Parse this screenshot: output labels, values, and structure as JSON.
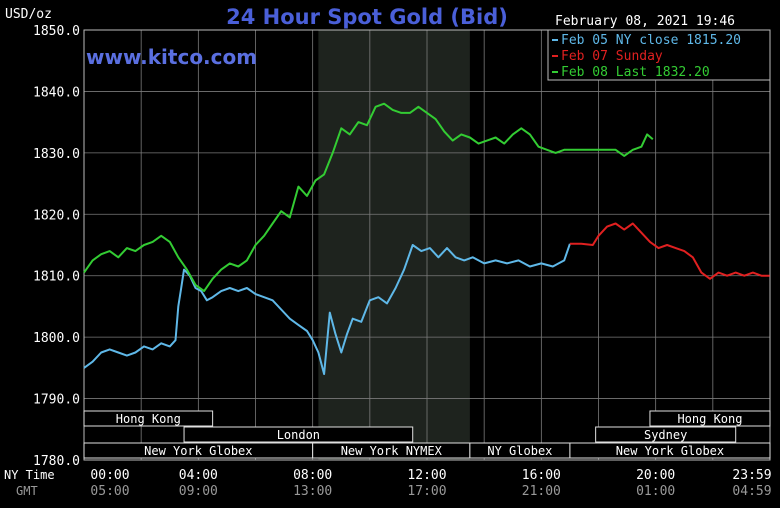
{
  "chart_data": {
    "type": "line",
    "title": "24 Hour Spot Gold (Bid)",
    "ylabel": "USD/oz",
    "watermark": "www.kitco.com",
    "date_time": "February 08, 2021 19:46",
    "ylim": [
      1780.0,
      1850.0
    ],
    "yticks": [
      "1850.0",
      "1840.0",
      "1830.0",
      "1820.0",
      "1810.0",
      "1800.0",
      "1790.0",
      "1780.0"
    ],
    "ny_time_label": "NY Time",
    "gmt_label": "GMT",
    "ny_time_ticks": [
      "00:00",
      "04:00",
      "08:00",
      "12:00",
      "16:00",
      "20:00",
      "23:59"
    ],
    "gmt_ticks": [
      "05:00",
      "09:00",
      "13:00",
      "17:00",
      "21:00",
      "01:00",
      "04:59"
    ],
    "legend": [
      {
        "label": "Feb 05 NY close 1815.20",
        "color": "#5fb8e8"
      },
      {
        "label": "Feb 07 Sunday",
        "color": "#e02020"
      },
      {
        "label": "Feb 08 Last 1832.20",
        "color": "#33cc33"
      }
    ],
    "sessions_row1": [
      {
        "label": "Hong Kong",
        "start": 0.0,
        "end": 4.5
      },
      {
        "label": "Hong Kong",
        "start": 19.8,
        "end": 24.0
      }
    ],
    "sessions_row2": [
      {
        "label": "London",
        "start": 3.5,
        "end": 11.5
      },
      {
        "label": "Sydney",
        "start": 17.9,
        "end": 22.8
      }
    ],
    "sessions_row3": [
      {
        "label": "New York Globex",
        "start": 0.0,
        "end": 8.0
      },
      {
        "label": "New York NYMEX",
        "start": 8.0,
        "end": 13.5
      },
      {
        "label": "NY Globex",
        "start": 13.5,
        "end": 17.0
      },
      {
        "label": "New York Globex",
        "start": 17.0,
        "end": 24.0
      }
    ],
    "shaded_region": [
      8.2,
      13.5
    ],
    "series": [
      {
        "name": "Feb 05 NY close 1815.20",
        "color": "#5fb8e8",
        "x": [
          0.0,
          0.3,
          0.6,
          0.9,
          1.2,
          1.5,
          1.8,
          2.1,
          2.4,
          2.7,
          3.0,
          3.2,
          3.3,
          3.4,
          3.5,
          3.7,
          3.9,
          4.1,
          4.3,
          4.5,
          4.8,
          5.1,
          5.4,
          5.7,
          6.0,
          6.3,
          6.6,
          6.9,
          7.2,
          7.5,
          7.8,
          8.0,
          8.2,
          8.4,
          8.6,
          8.8,
          9.0,
          9.2,
          9.4,
          9.7,
          10.0,
          10.3,
          10.6,
          10.9,
          11.2,
          11.5,
          11.8,
          12.1,
          12.4,
          12.7,
          13.0,
          13.3,
          13.6,
          14.0,
          14.4,
          14.8,
          15.2,
          15.6,
          16.0,
          16.4,
          16.8,
          17.0
        ],
        "y": [
          1795.0,
          1796.0,
          1797.5,
          1798.0,
          1797.5,
          1797.0,
          1797.5,
          1798.5,
          1798.0,
          1799.0,
          1798.5,
          1799.5,
          1805.0,
          1808.0,
          1811.0,
          1810.0,
          1808.0,
          1807.5,
          1806.0,
          1806.5,
          1807.5,
          1808.0,
          1807.5,
          1808.0,
          1807.0,
          1806.5,
          1806.0,
          1804.5,
          1803.0,
          1802.0,
          1801.0,
          1799.5,
          1797.5,
          1794.0,
          1804.0,
          1800.5,
          1797.5,
          1800.5,
          1803.0,
          1802.5,
          1806.0,
          1806.5,
          1805.5,
          1808.0,
          1811.0,
          1815.0,
          1814.0,
          1814.5,
          1813.0,
          1814.5,
          1813.0,
          1812.5,
          1813.0,
          1812.0,
          1812.5,
          1812.0,
          1812.5,
          1811.5,
          1812.0,
          1811.5,
          1812.5,
          1815.2
        ]
      },
      {
        "name": "Feb 07 Sunday",
        "color": "#e02020",
        "x": [
          17.0,
          17.4,
          17.8,
          18.0,
          18.3,
          18.6,
          18.9,
          19.2,
          19.5,
          19.8,
          20.1,
          20.4,
          20.7,
          21.0,
          21.3,
          21.6,
          21.9,
          22.2,
          22.5,
          22.8,
          23.1,
          23.4,
          23.7,
          23.99
        ],
        "y": [
          1815.2,
          1815.2,
          1815.0,
          1816.5,
          1818.0,
          1818.5,
          1817.5,
          1818.5,
          1817.0,
          1815.5,
          1814.5,
          1815.0,
          1814.5,
          1814.0,
          1813.0,
          1810.5,
          1809.5,
          1810.5,
          1810.0,
          1810.5,
          1810.0,
          1810.5,
          1810.0,
          1810.0
        ]
      },
      {
        "name": "Feb 08 Last 1832.20",
        "color": "#33cc33",
        "x": [
          0.0,
          0.3,
          0.6,
          0.9,
          1.2,
          1.5,
          1.8,
          2.1,
          2.4,
          2.7,
          3.0,
          3.3,
          3.6,
          3.9,
          4.2,
          4.5,
          4.8,
          5.1,
          5.4,
          5.7,
          6.0,
          6.3,
          6.6,
          6.9,
          7.2,
          7.5,
          7.8,
          8.1,
          8.4,
          8.7,
          9.0,
          9.3,
          9.6,
          9.9,
          10.2,
          10.5,
          10.8,
          11.1,
          11.4,
          11.7,
          12.0,
          12.3,
          12.6,
          12.9,
          13.2,
          13.5,
          13.8,
          14.1,
          14.4,
          14.7,
          15.0,
          15.3,
          15.6,
          15.9,
          16.2,
          16.5,
          16.8,
          17.1,
          17.4,
          17.7,
          18.0,
          18.3,
          18.6,
          18.9,
          19.2,
          19.5,
          19.7,
          19.9
        ],
        "y": [
          1810.5,
          1812.5,
          1813.5,
          1814.0,
          1813.0,
          1814.5,
          1814.0,
          1815.0,
          1815.5,
          1816.5,
          1815.5,
          1813.0,
          1811.0,
          1808.5,
          1807.5,
          1809.5,
          1811.0,
          1812.0,
          1811.5,
          1812.5,
          1815.0,
          1816.5,
          1818.5,
          1820.5,
          1819.5,
          1824.5,
          1823.0,
          1825.5,
          1826.5,
          1830.0,
          1834.0,
          1833.0,
          1835.0,
          1834.5,
          1837.5,
          1838.0,
          1837.0,
          1836.5,
          1836.5,
          1837.5,
          1836.5,
          1835.5,
          1833.5,
          1832.0,
          1833.0,
          1832.5,
          1831.5,
          1832.0,
          1832.5,
          1831.5,
          1833.0,
          1834.0,
          1833.0,
          1831.0,
          1830.5,
          1830.0,
          1830.5,
          1830.5,
          1830.5,
          1830.5,
          1830.5,
          1830.5,
          1830.5,
          1829.5,
          1830.5,
          1831.0,
          1833.0,
          1832.2
        ]
      }
    ]
  }
}
